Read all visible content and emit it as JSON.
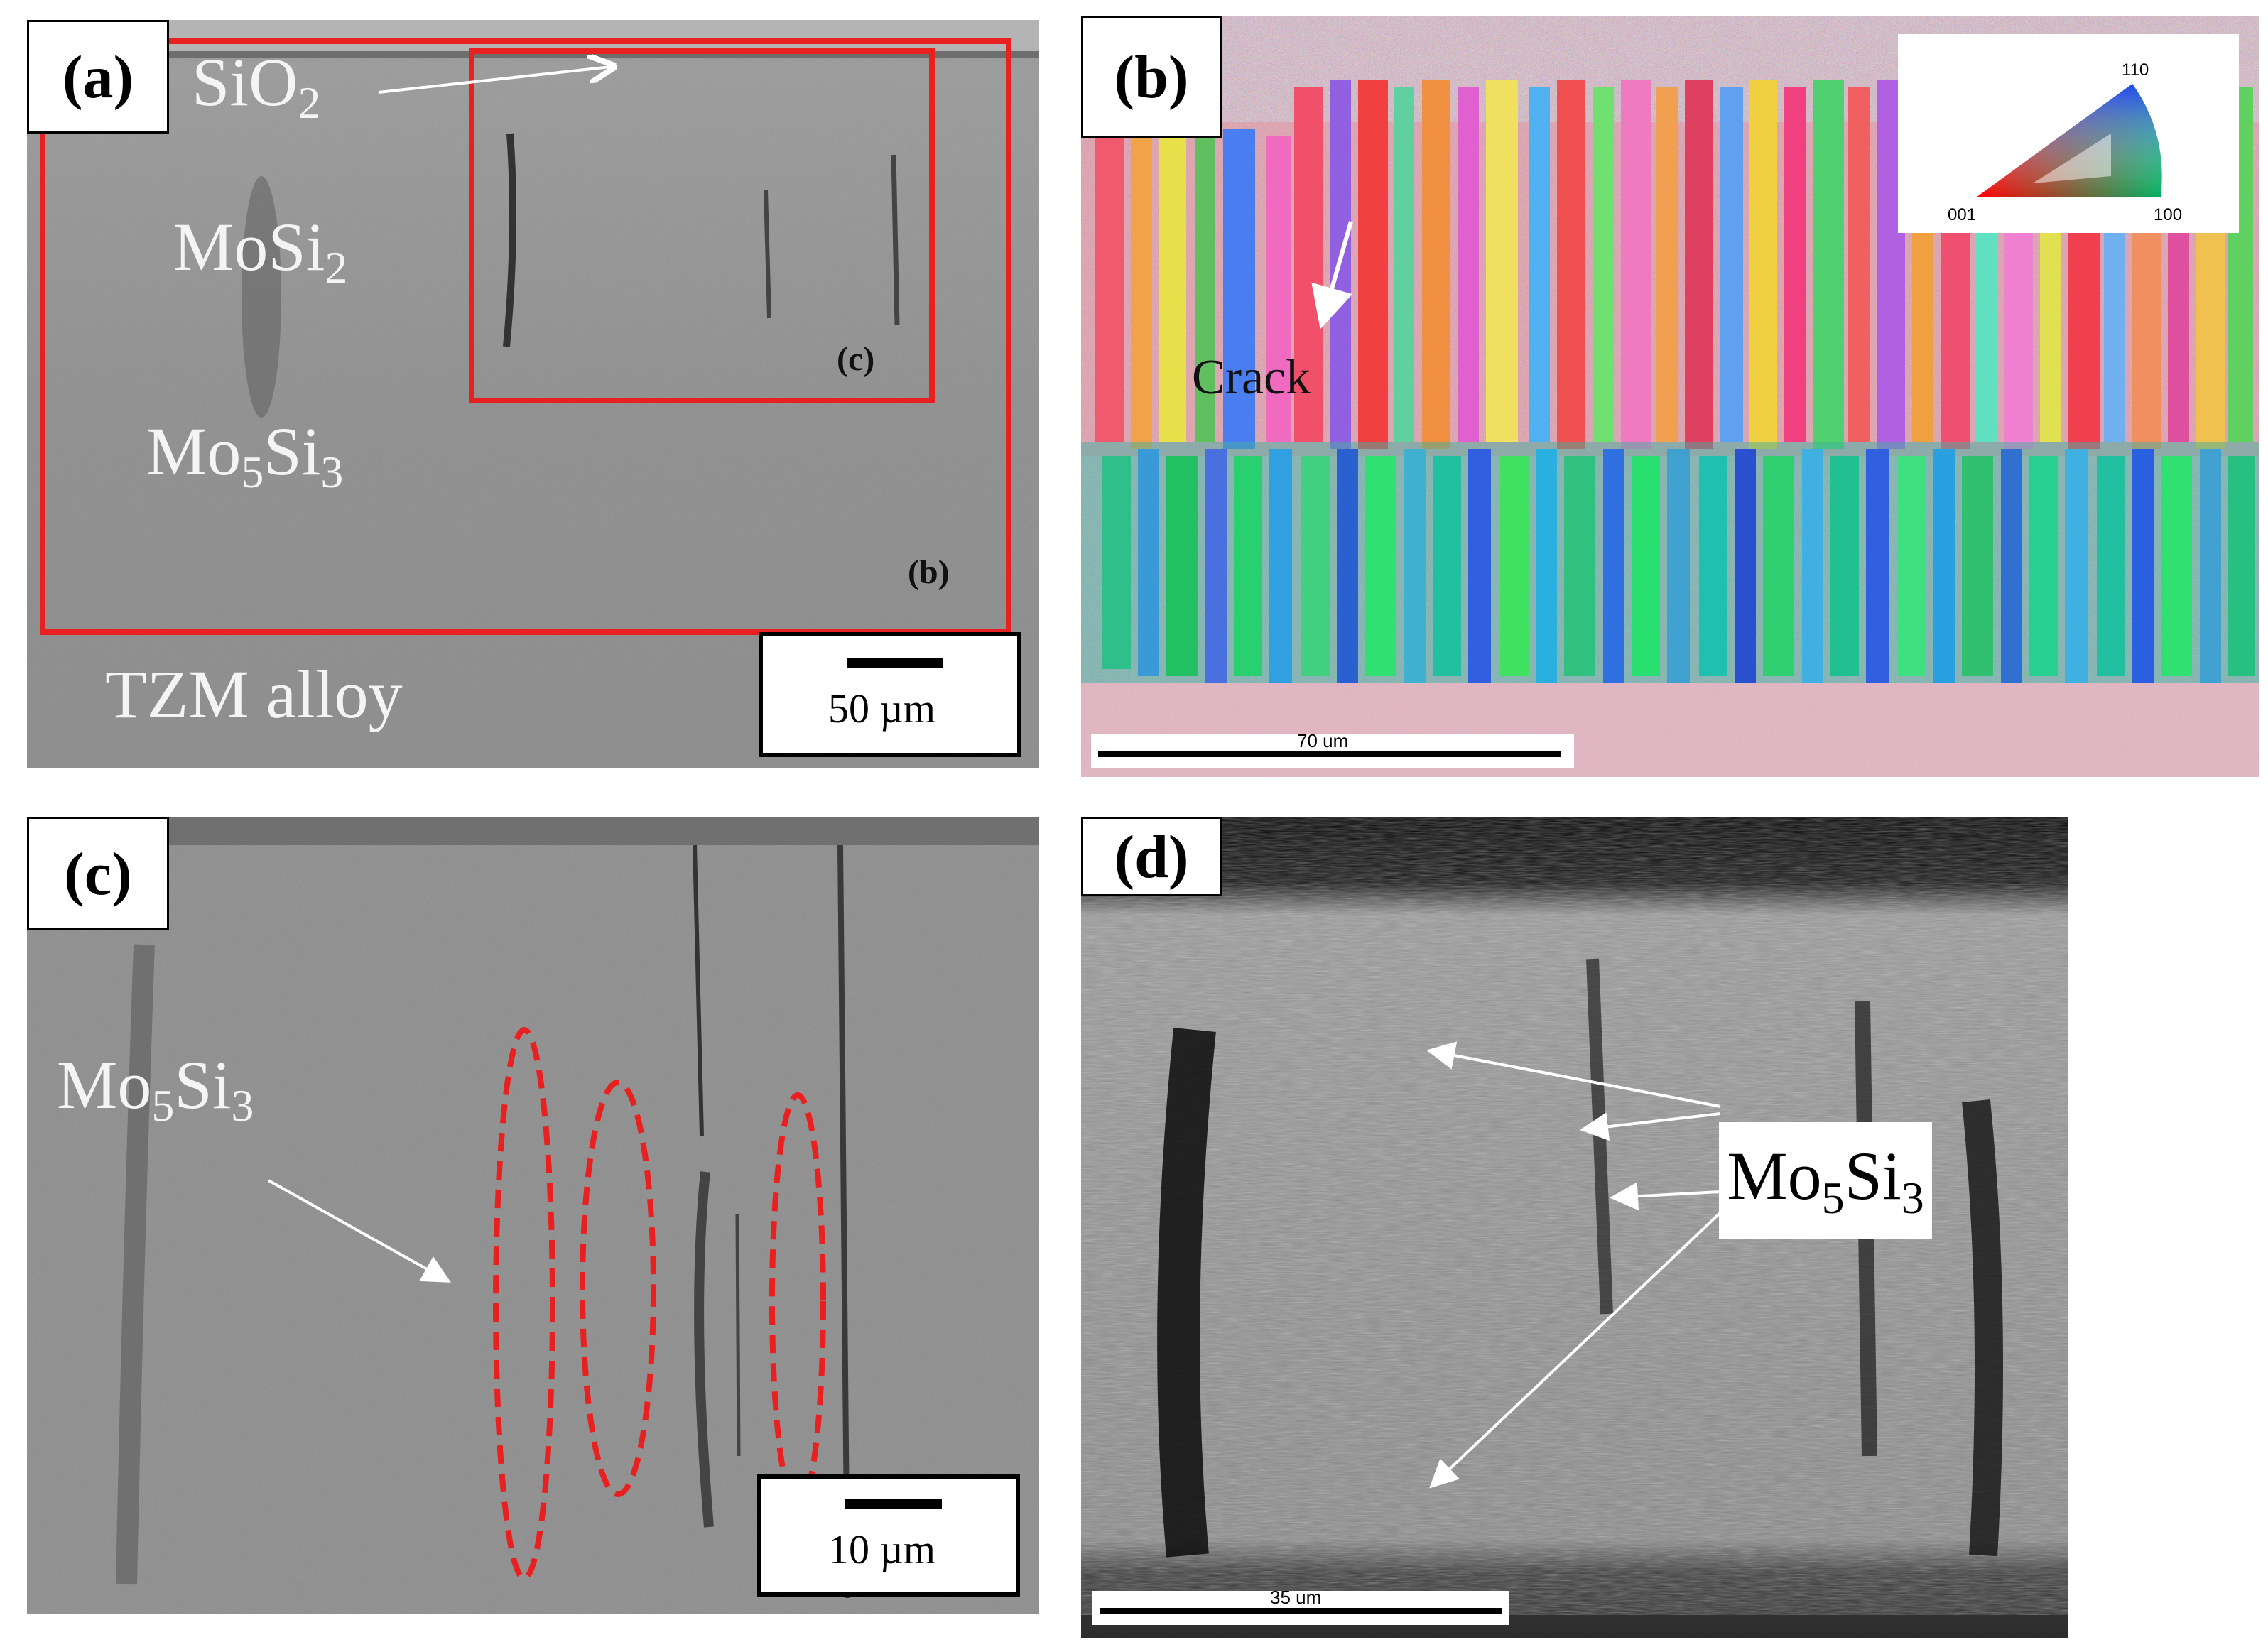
{
  "panels": {
    "a": {
      "tag": "(a)",
      "labels": {
        "sio2": "SiO",
        "sio2_sub": "2",
        "mosi2_main": "MoSi",
        "mosi2_sub": "2",
        "mo5si3_a": "Mo",
        "mo5si3_a_sub": "5",
        "mo5si3_b": "Si",
        "mo5si3_b_sub": "3",
        "tzm": "TZM alloy"
      },
      "inset_tags": {
        "c": "(c)",
        "b": "(b)"
      },
      "scale_label": "50 µm"
    },
    "b": {
      "tag": "(b)",
      "crack_label": "Crack",
      "ipf_key": {
        "top": "110",
        "left": "001",
        "right": "100"
      },
      "scale_label": "70 um"
    },
    "c": {
      "tag": "(c)",
      "label_a": "Mo",
      "label_a_sub": "5",
      "label_b": "Si",
      "label_b_sub": "3",
      "scale_label": "10 µm"
    },
    "d": {
      "tag": "(d)",
      "label_a": "Mo",
      "label_a_sub": "5",
      "label_b": "Si",
      "label_b_sub": "3",
      "scale_label": "35 um"
    }
  },
  "colors": {
    "annotation_red": "#e8201f"
  }
}
